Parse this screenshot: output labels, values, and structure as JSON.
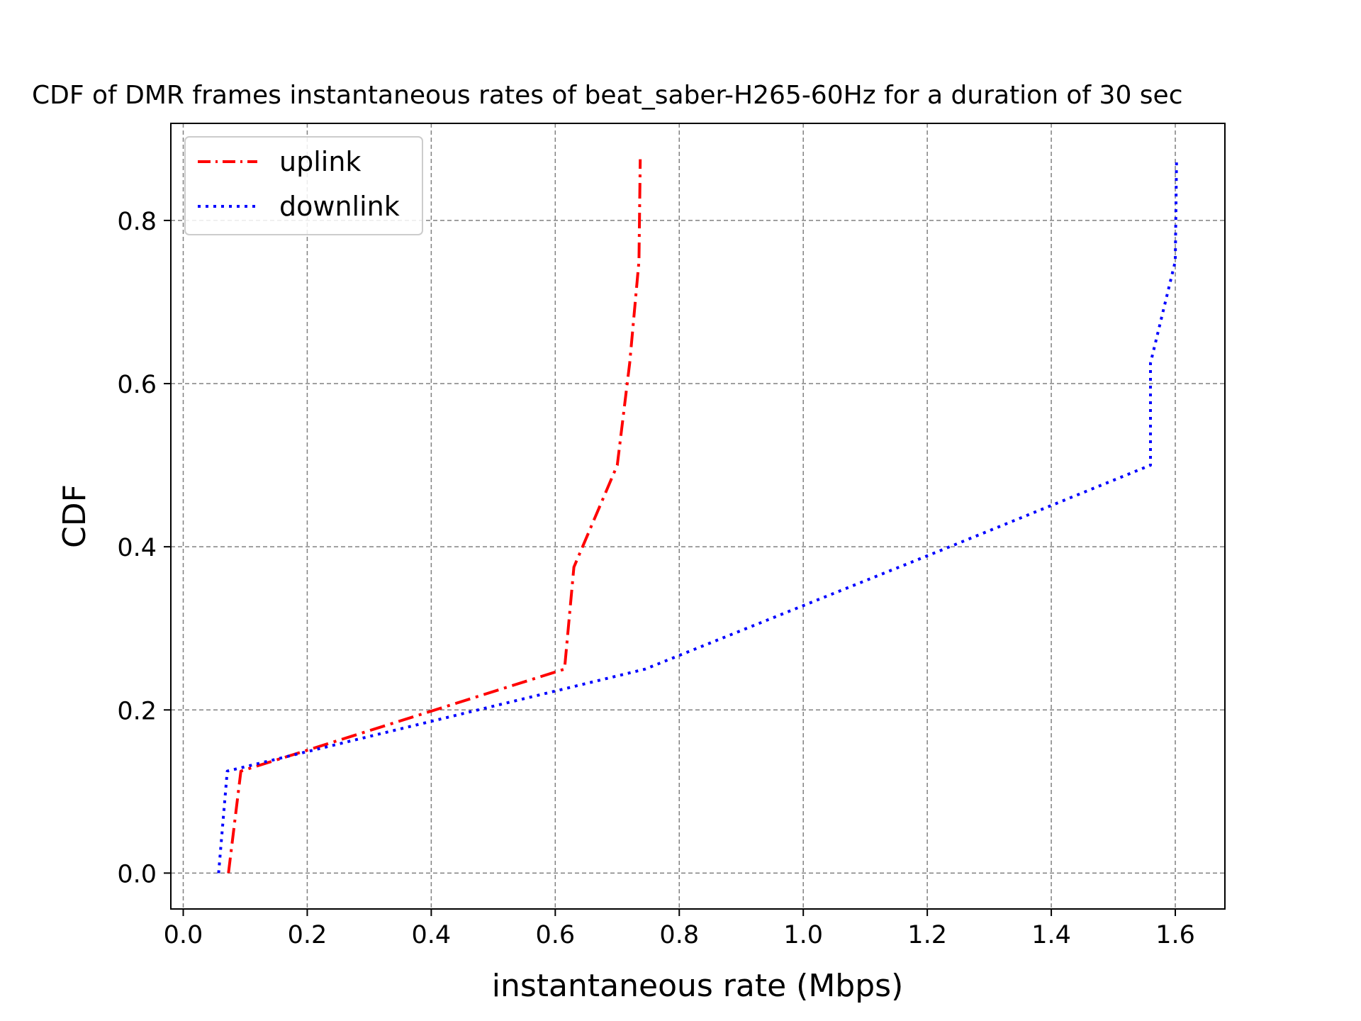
{
  "chart_data": {
    "type": "line",
    "title": "CDF of DMR frames instantaneous rates of beat_saber-H265-60Hz for a duration of 30 sec",
    "xlabel": "instantaneous rate (Mbps)",
    "ylabel": "CDF",
    "xlim": [
      -0.02,
      1.68
    ],
    "ylim": [
      -0.044,
      0.919
    ],
    "xticks": [
      0.0,
      0.2,
      0.4,
      0.6,
      0.8,
      1.0,
      1.2,
      1.4,
      1.6
    ],
    "xtick_labels": [
      "0.0",
      "0.2",
      "0.4",
      "0.6",
      "0.8",
      "1.0",
      "1.2",
      "1.4",
      "1.6"
    ],
    "yticks": [
      0.0,
      0.2,
      0.4,
      0.6,
      0.8
    ],
    "ytick_labels": [
      "0.0",
      "0.2",
      "0.4",
      "0.6",
      "0.8"
    ],
    "grid": true,
    "legend_position": "top-left",
    "series": [
      {
        "name": "uplink",
        "color": "#ff0000",
        "style": "dashdot",
        "x": [
          0.073,
          0.093,
          0.615,
          0.63,
          0.7,
          0.72,
          0.735,
          0.737
        ],
        "y": [
          0.0,
          0.125,
          0.25,
          0.375,
          0.5,
          0.625,
          0.75,
          0.875
        ]
      },
      {
        "name": "downlink",
        "color": "#0000ff",
        "style": "dotted",
        "x": [
          0.057,
          0.071,
          0.745,
          1.22,
          1.56,
          1.56,
          1.6,
          1.602
        ],
        "y": [
          0.0,
          0.125,
          0.25,
          0.395,
          0.5,
          0.625,
          0.75,
          0.875
        ]
      }
    ]
  }
}
